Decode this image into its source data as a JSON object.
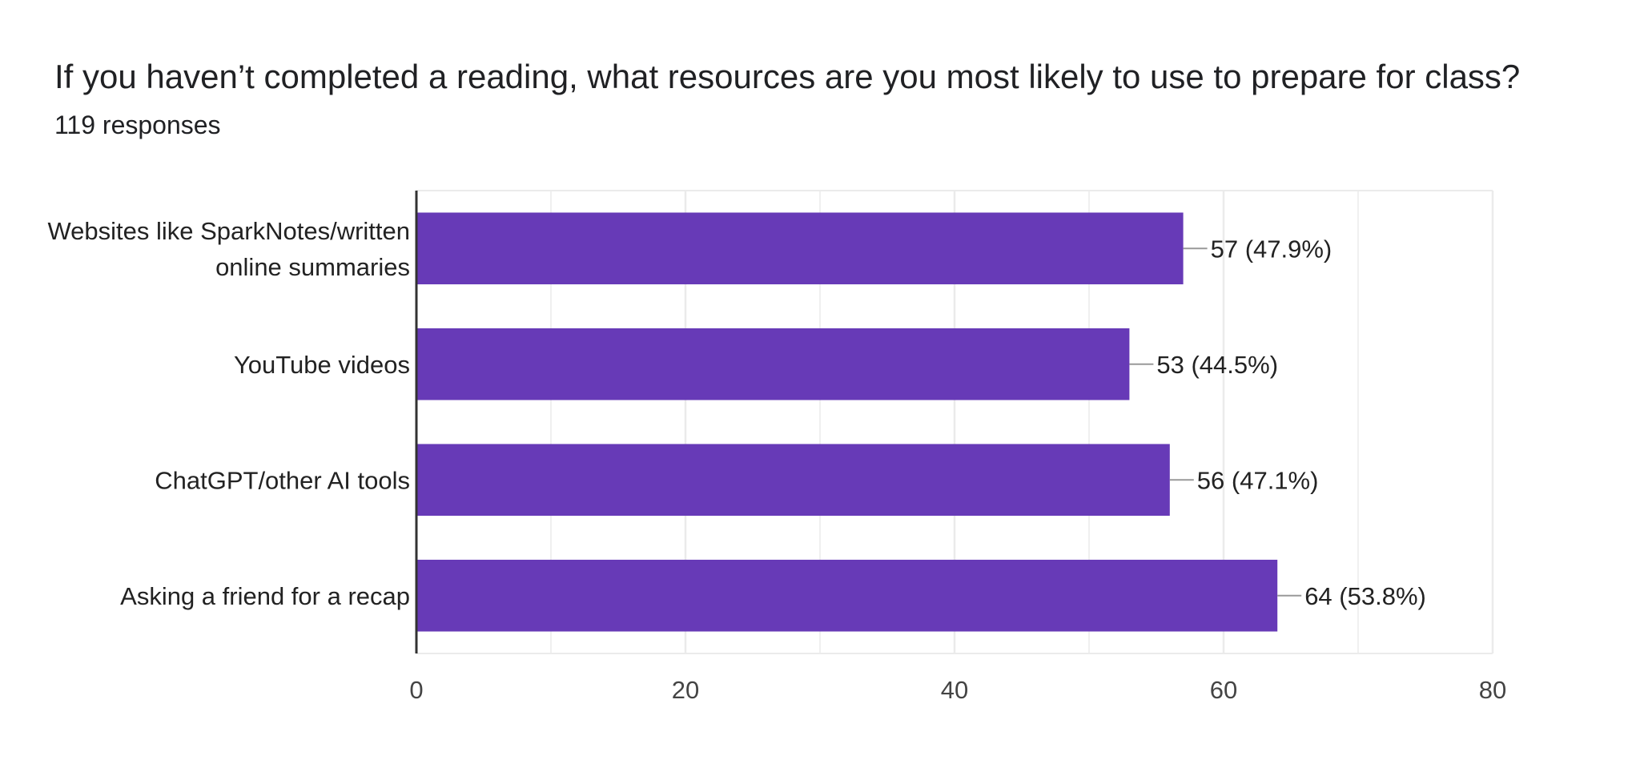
{
  "question": {
    "title": "If you haven’t completed a reading, what resources are you most likely to use to prepare for class?",
    "responses": "119 responses"
  },
  "colors": {
    "bar": "#673ab7",
    "grid": "#ebebeb",
    "axis": "#333333",
    "leader": "#999999"
  },
  "chart_data": {
    "type": "bar",
    "orientation": "horizontal",
    "categories": [
      [
        "Websites like SparkNotes/written",
        "online summaries"
      ],
      [
        "YouTube videos"
      ],
      [
        "ChatGPT/other AI tools"
      ],
      [
        "Asking a friend for a recap"
      ]
    ],
    "values": [
      57,
      53,
      56,
      64
    ],
    "value_labels": [
      "57 (47.9%)",
      "53 (44.5%)",
      "56 (47.1%)",
      "64 (53.8%)"
    ],
    "xlim": [
      0,
      80
    ],
    "xticks": [
      0,
      20,
      40,
      60,
      80
    ],
    "minor_gridlines": true
  }
}
